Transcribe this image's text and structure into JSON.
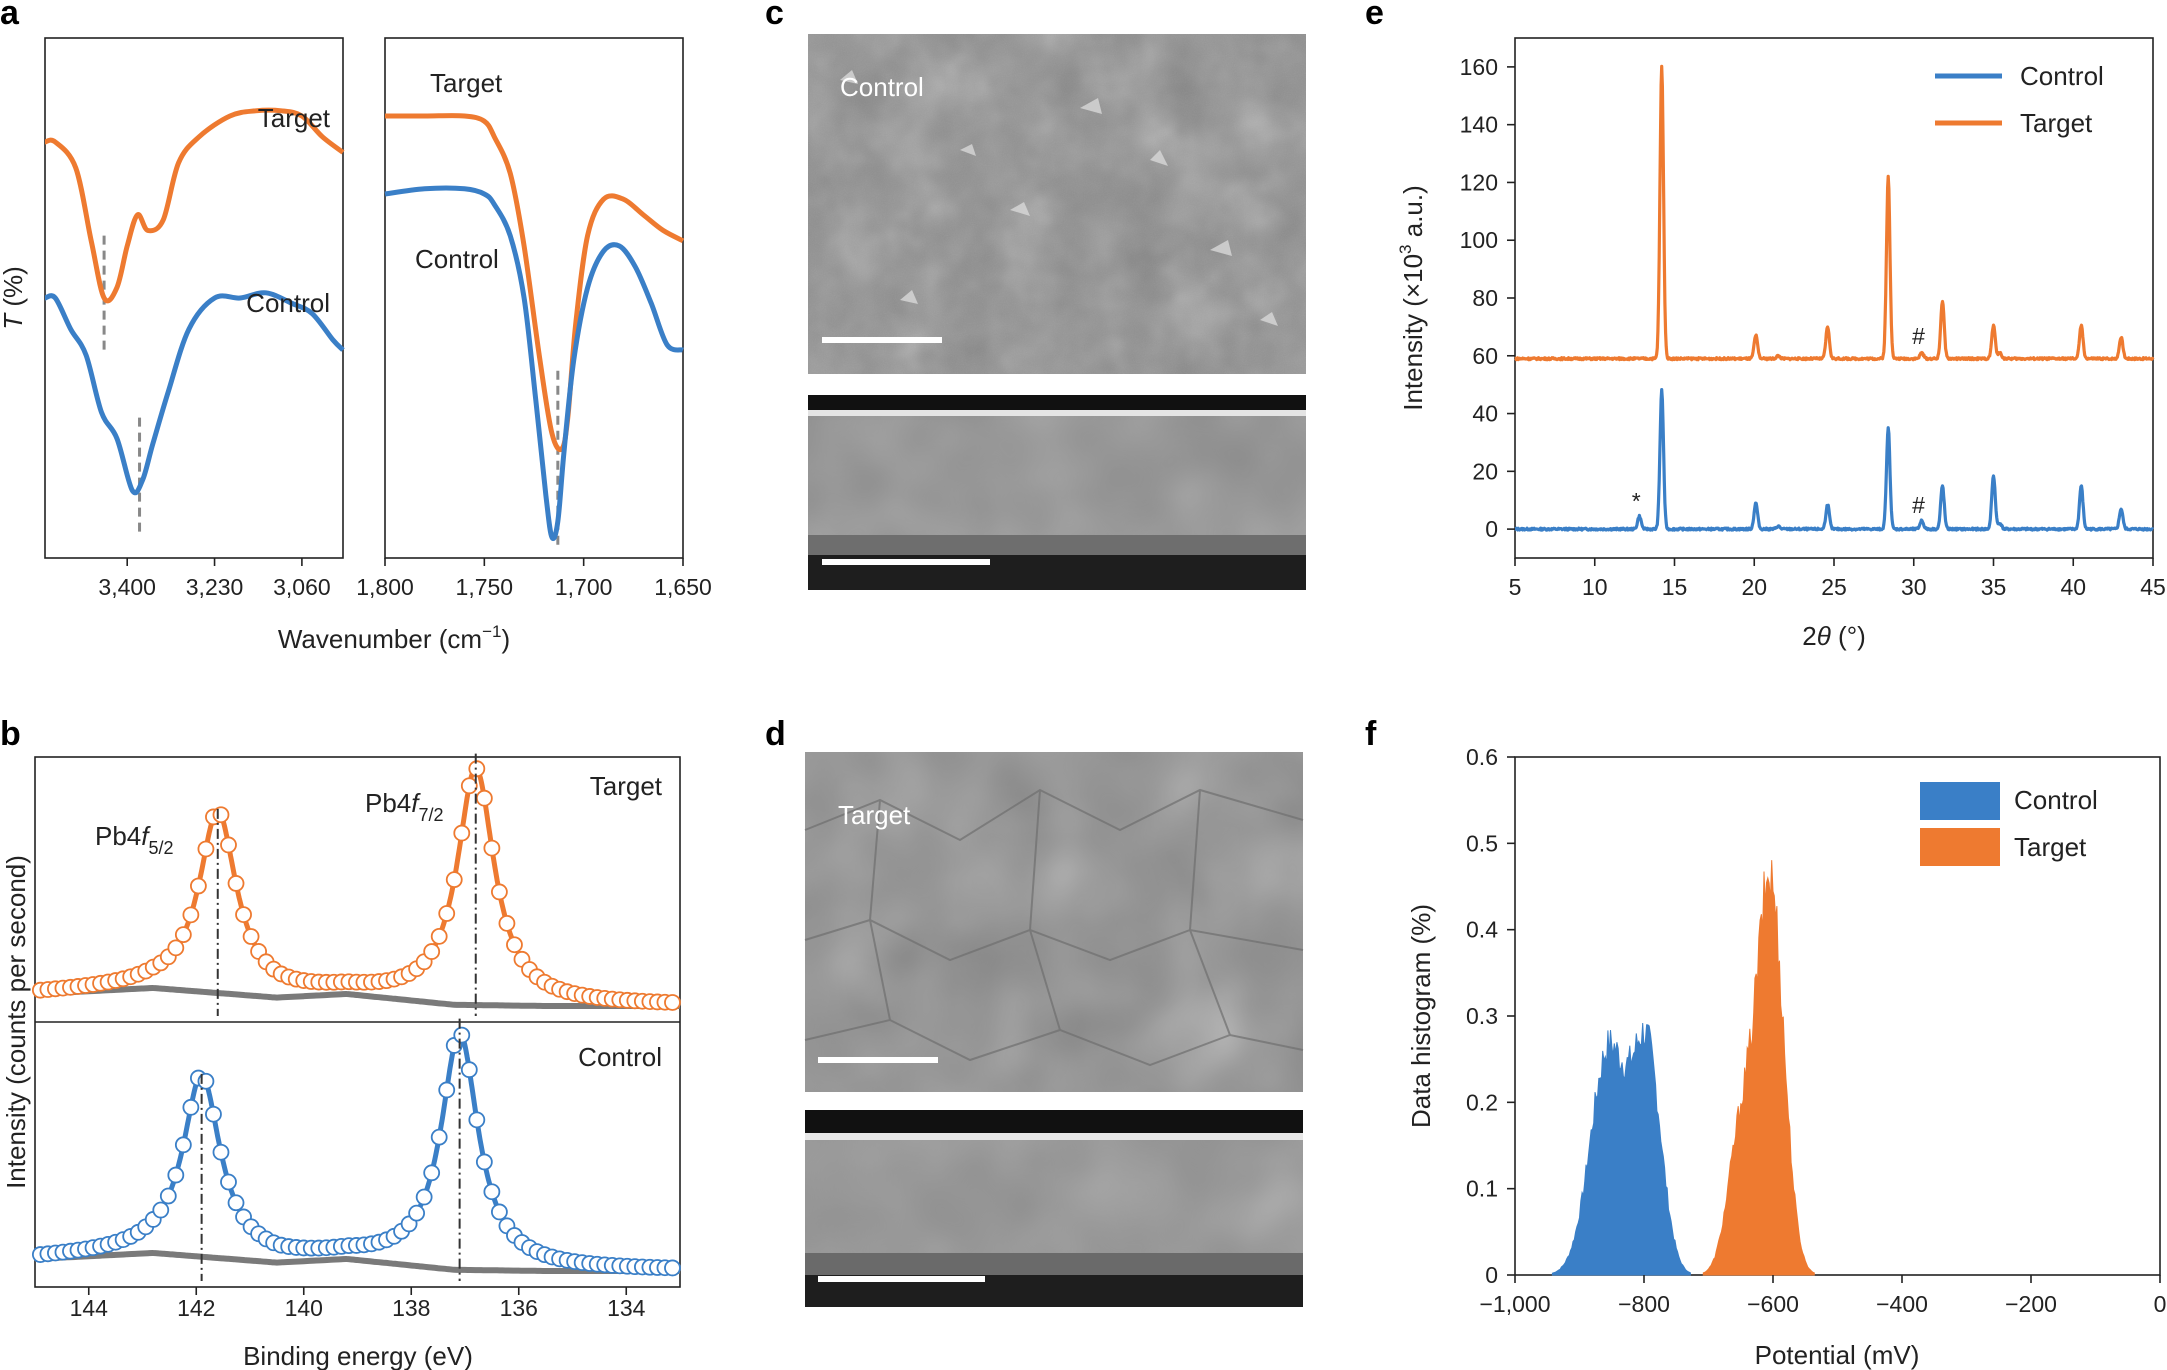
{
  "colors": {
    "control": "#3a7fc7",
    "target": "#ee7a30",
    "baseline": "#7a7a7a",
    "dashed": "#888888"
  },
  "panel_letters": [
    "a",
    "b",
    "c",
    "d",
    "e",
    "f"
  ],
  "panel_c": {
    "label": "Control"
  },
  "panel_d": {
    "label": "Target"
  },
  "chart_data": [
    {
      "panel": "a",
      "type": "line",
      "xlabel_text": "Wavenumber (cm",
      "xlabel_sup": "−1",
      "xlabel_end": ")",
      "ylabel_italic": "T",
      "ylabel_rest": " (%)",
      "left": {
        "xlim": [
          3560,
          2980
        ],
        "ticks": [
          3400,
          3230,
          3060
        ],
        "tick_labels": [
          "3,400",
          "3,230",
          "3,060"
        ],
        "series": [
          {
            "name": "Target",
            "x": [
              3560,
              3540,
              3500,
              3470,
              3445,
              3420,
              3400,
              3380,
              3360,
              3330,
              3300,
              3260,
              3200,
              3150,
              3100,
              3060,
              3020,
              2980
            ],
            "y": [
              0.8,
              0.8,
              0.75,
              0.61,
              0.5,
              0.52,
              0.6,
              0.66,
              0.63,
              0.65,
              0.76,
              0.81,
              0.85,
              0.86,
              0.86,
              0.85,
              0.81,
              0.78
            ]
          },
          {
            "name": "Control",
            "x": [
              3560,
              3540,
              3510,
              3480,
              3450,
              3420,
              3390,
              3370,
              3350,
              3320,
              3280,
              3230,
              3180,
              3130,
              3080,
              3040,
              3000,
              2980
            ],
            "y": [
              0.5,
              0.5,
              0.44,
              0.39,
              0.28,
              0.23,
              0.13,
              0.15,
              0.22,
              0.32,
              0.44,
              0.5,
              0.5,
              0.51,
              0.49,
              0.47,
              0.42,
              0.4
            ]
          }
        ],
        "dashed_markers": [
          {
            "x": 3445,
            "y0": 0.4,
            "y1": 0.62
          },
          {
            "x": 3376,
            "y0": 0.05,
            "y1": 0.27
          }
        ],
        "labels": {
          "target": "Target",
          "control": "Control"
        }
      },
      "right": {
        "xlim": [
          1800,
          1650
        ],
        "ticks": [
          1800,
          1750,
          1700,
          1650
        ],
        "tick_labels": [
          "1,800",
          "1,750",
          "1,700",
          "1,650"
        ],
        "series": [
          {
            "name": "Target",
            "x": [
              1800,
              1780,
              1760,
              1750,
              1745,
              1737,
              1730,
              1722,
              1716,
              1711,
              1708,
              1704,
              1698,
              1690,
              1680,
              1670,
              1660,
              1650
            ],
            "y": [
              0.85,
              0.85,
              0.85,
              0.84,
              0.81,
              0.74,
              0.6,
              0.38,
              0.24,
              0.21,
              0.27,
              0.45,
              0.62,
              0.69,
              0.69,
              0.66,
              0.63,
              0.61
            ]
          },
          {
            "name": "Control",
            "x": [
              1800,
              1780,
              1760,
              1750,
              1745,
              1737,
              1730,
              1724,
              1719,
              1716,
              1713,
              1710,
              1705,
              1698,
              1690,
              1682,
              1674,
              1666,
              1658,
              1650
            ],
            "y": [
              0.7,
              0.71,
              0.71,
              0.7,
              0.68,
              0.62,
              0.5,
              0.3,
              0.12,
              0.04,
              0.07,
              0.2,
              0.38,
              0.52,
              0.59,
              0.6,
              0.56,
              0.49,
              0.41,
              0.4
            ]
          }
        ],
        "dashed_markers": [
          {
            "x": 1713,
            "y0": 0.02,
            "y1": 0.36
          }
        ],
        "labels": {
          "target": "Target",
          "control": "Control"
        }
      }
    },
    {
      "panel": "b",
      "type": "scatter+line",
      "xlim": [
        145,
        133
      ],
      "ticks": [
        144,
        142,
        140,
        138,
        136,
        134
      ],
      "tick_labels": [
        "144",
        "142",
        "140",
        "138",
        "136",
        "134"
      ],
      "xlabel": "Binding energy (eV)",
      "ylabel": "Intensity (counts per second)",
      "series": [
        {
          "name": "Target",
          "peaks": [
            {
              "center": 141.6,
              "amp": 0.75,
              "width": 0.42
            },
            {
              "center": 136.8,
              "amp": 0.98,
              "width": 0.42
            }
          ],
          "offset": 0.1,
          "bg_x": [
            145,
            142.8,
            140.5,
            139.2,
            137.2,
            135.5,
            133
          ],
          "bg_y": [
            0.1,
            0.125,
            0.085,
            0.1,
            0.055,
            0.05,
            0.05
          ]
        },
        {
          "name": "Control",
          "peaks": [
            {
              "center": 141.9,
              "amp": 0.75,
              "width": 0.42
            },
            {
              "center": 137.1,
              "amp": 0.98,
              "width": 0.42
            }
          ],
          "offset": 0.1,
          "bg_x": [
            145,
            142.8,
            140.5,
            139.2,
            137.2,
            135.5,
            133
          ],
          "bg_y": [
            0.1,
            0.125,
            0.085,
            0.1,
            0.055,
            0.05,
            0.05
          ]
        }
      ],
      "annotations": {
        "peak1": "Pb4",
        "peak1_f": "f",
        "peak1_sub": "5/2",
        "peak2": "Pb4",
        "peak2_f": "f",
        "peak2_sub": "7/2",
        "target": "Target",
        "control": "Control"
      }
    },
    {
      "panel": "e",
      "type": "line",
      "xlim": [
        5,
        45
      ],
      "ylim": [
        -10,
        170
      ],
      "xticks": [
        5,
        10,
        15,
        20,
        25,
        30,
        35,
        40,
        45
      ],
      "yticks": [
        0,
        20,
        40,
        60,
        80,
        100,
        120,
        140,
        160
      ],
      "xlabel_pre": "2",
      "xlabel_theta": "θ",
      "xlabel_post": " (°)",
      "ylabel_text": "Intensity (×10",
      "ylabel_sup": "3",
      "ylabel_end": " a.u.)",
      "legend": [
        "Control",
        "Target"
      ],
      "series": [
        {
          "name": "Control",
          "baseline": 0,
          "peaks": [
            [
              12.8,
              4.5
            ],
            [
              14.2,
              48
            ],
            [
              20.1,
              9
            ],
            [
              21.5,
              1
            ],
            [
              24.6,
              8.5
            ],
            [
              28.4,
              35
            ],
            [
              30.5,
              3
            ],
            [
              31.8,
              15
            ],
            [
              35.0,
              18.5
            ],
            [
              35.4,
              2
            ],
            [
              40.5,
              15
            ],
            [
              43.0,
              7
            ]
          ]
        },
        {
          "name": "Target",
          "baseline": 59,
          "peaks": [
            [
              14.2,
              101
            ],
            [
              20.1,
              8
            ],
            [
              21.5,
              1
            ],
            [
              24.6,
              11
            ],
            [
              28.4,
              63
            ],
            [
              30.5,
              2
            ],
            [
              31.8,
              20
            ],
            [
              35.0,
              11.5
            ],
            [
              35.4,
              2
            ],
            [
              40.5,
              11.5
            ],
            [
              43.0,
              7.5
            ]
          ]
        }
      ],
      "annotations": [
        {
          "text": "*",
          "x": 12.6,
          "y": 7
        },
        {
          "text": "#",
          "x": 30.3,
          "y": 5.5
        },
        {
          "text": "#",
          "x": 30.3,
          "y": 64
        }
      ]
    },
    {
      "panel": "f",
      "type": "histogram",
      "xlim": [
        -1000,
        0
      ],
      "ylim": [
        0,
        0.6
      ],
      "xticks": [
        -1000,
        -800,
        -600,
        -400,
        -200,
        0
      ],
      "xtick_labels": [
        "−1,000",
        "−800",
        "−600",
        "−400",
        "−200",
        "0"
      ],
      "yticks": [
        0,
        0.1,
        0.2,
        0.3,
        0.4,
        0.5,
        0.6
      ],
      "ytick_labels": [
        "0",
        "0.1",
        "0.2",
        "0.3",
        "0.4",
        "0.5",
        "0.6"
      ],
      "xlabel": "Potential (mV)",
      "ylabel": "Data histogram (%)",
      "legend": [
        "Control",
        "Target"
      ],
      "series": [
        {
          "name": "Control",
          "components": [
            {
              "mean": -855,
              "sd": 28,
              "amp": 0.26
            },
            {
              "mean": -795,
              "sd": 22,
              "amp": 0.25
            }
          ]
        },
        {
          "name": "Target",
          "components": [
            {
              "mean": -604,
              "sd": 21,
              "amp": 0.45
            },
            {
              "mean": -650,
              "sd": 20,
              "amp": 0.16
            }
          ]
        }
      ]
    }
  ]
}
